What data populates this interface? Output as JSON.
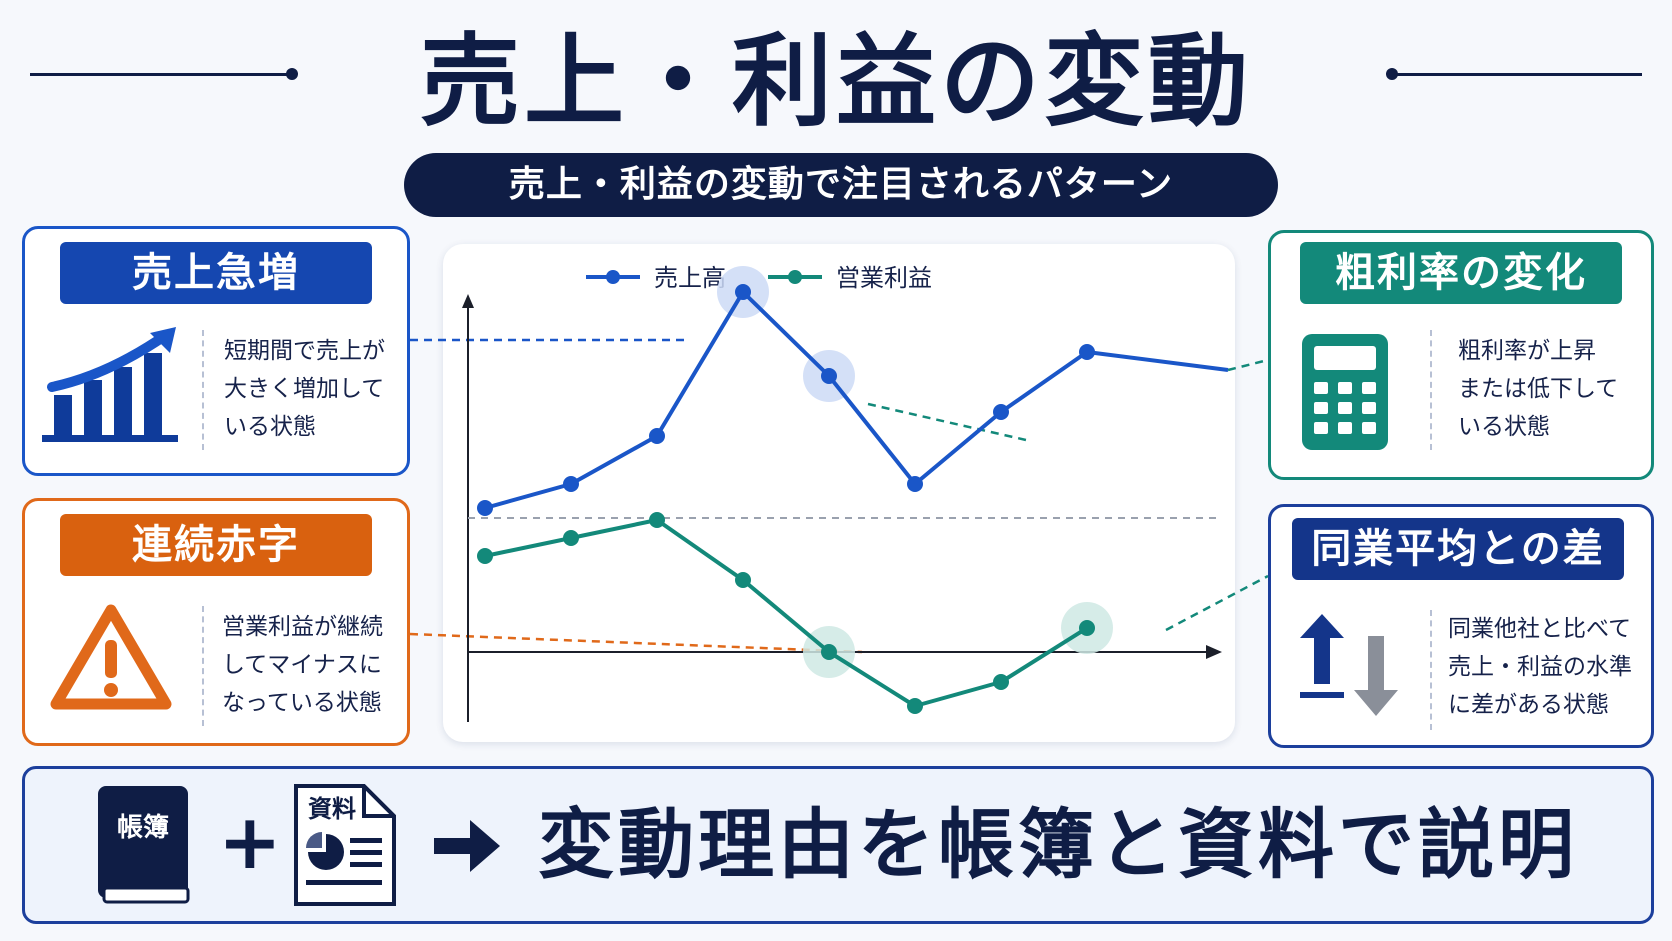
{
  "title": "売上・利益の変動",
  "subtitle": "売上・利益の変動で注目されるパターン",
  "colors": {
    "navy": "#0f1d45",
    "blue": "#1a56c8",
    "orange": "#e0691a",
    "teal": "#13897a",
    "sales_line": "#1a56c8",
    "profit_line": "#13897a"
  },
  "cards": {
    "sales_surge": {
      "heading": "売上急増",
      "text": "短期間で売上が\n大きく増加して\nいる状態",
      "icon": "bar-chart-growth-icon"
    },
    "consecutive_deficit": {
      "heading": "連続赤字",
      "text": "営業利益が継続\nしてマイナスに\nなっている状態",
      "icon": "warning-icon"
    },
    "gross_margin_change": {
      "heading": "粗利率の変化",
      "text": "粗利率が上昇\nまたは低下して\nいる状態",
      "icon": "calculator-icon"
    },
    "industry_gap": {
      "heading": "同業平均との差",
      "text": "同業他社と比べて\n売上・利益の水準\nに差がある状態",
      "icon": "up-down-arrows-icon"
    }
  },
  "chart_data": {
    "type": "line",
    "legend_position": "top",
    "x": [
      1,
      2,
      3,
      4,
      5,
      6,
      7,
      8,
      9
    ],
    "series": [
      {
        "name": "売上高",
        "values": [
          1.2,
          1.4,
          1.8,
          3.0,
          2.3,
          1.4,
          2.0,
          2.5,
          null
        ]
      },
      {
        "name": "営業利益",
        "values": [
          0.8,
          0.95,
          1.1,
          0.6,
          0.0,
          -0.45,
          -0.25,
          0.2,
          null
        ]
      }
    ],
    "highlighted_points": [
      {
        "series": "売上高",
        "x": 4
      },
      {
        "series": "売上高",
        "x": 5
      },
      {
        "series": "営業利益",
        "x": 5
      },
      {
        "series": "営業利益",
        "x": 8
      }
    ],
    "xlabel": "",
    "ylabel": ""
  },
  "bottom": {
    "book_label": "帳簿",
    "plus": "+",
    "document_label": "資料",
    "message": "変動理由を帳簿と資料で説明",
    "icons": [
      "ledger-book-icon",
      "document-pie-chart-icon",
      "arrow-right-icon"
    ]
  }
}
